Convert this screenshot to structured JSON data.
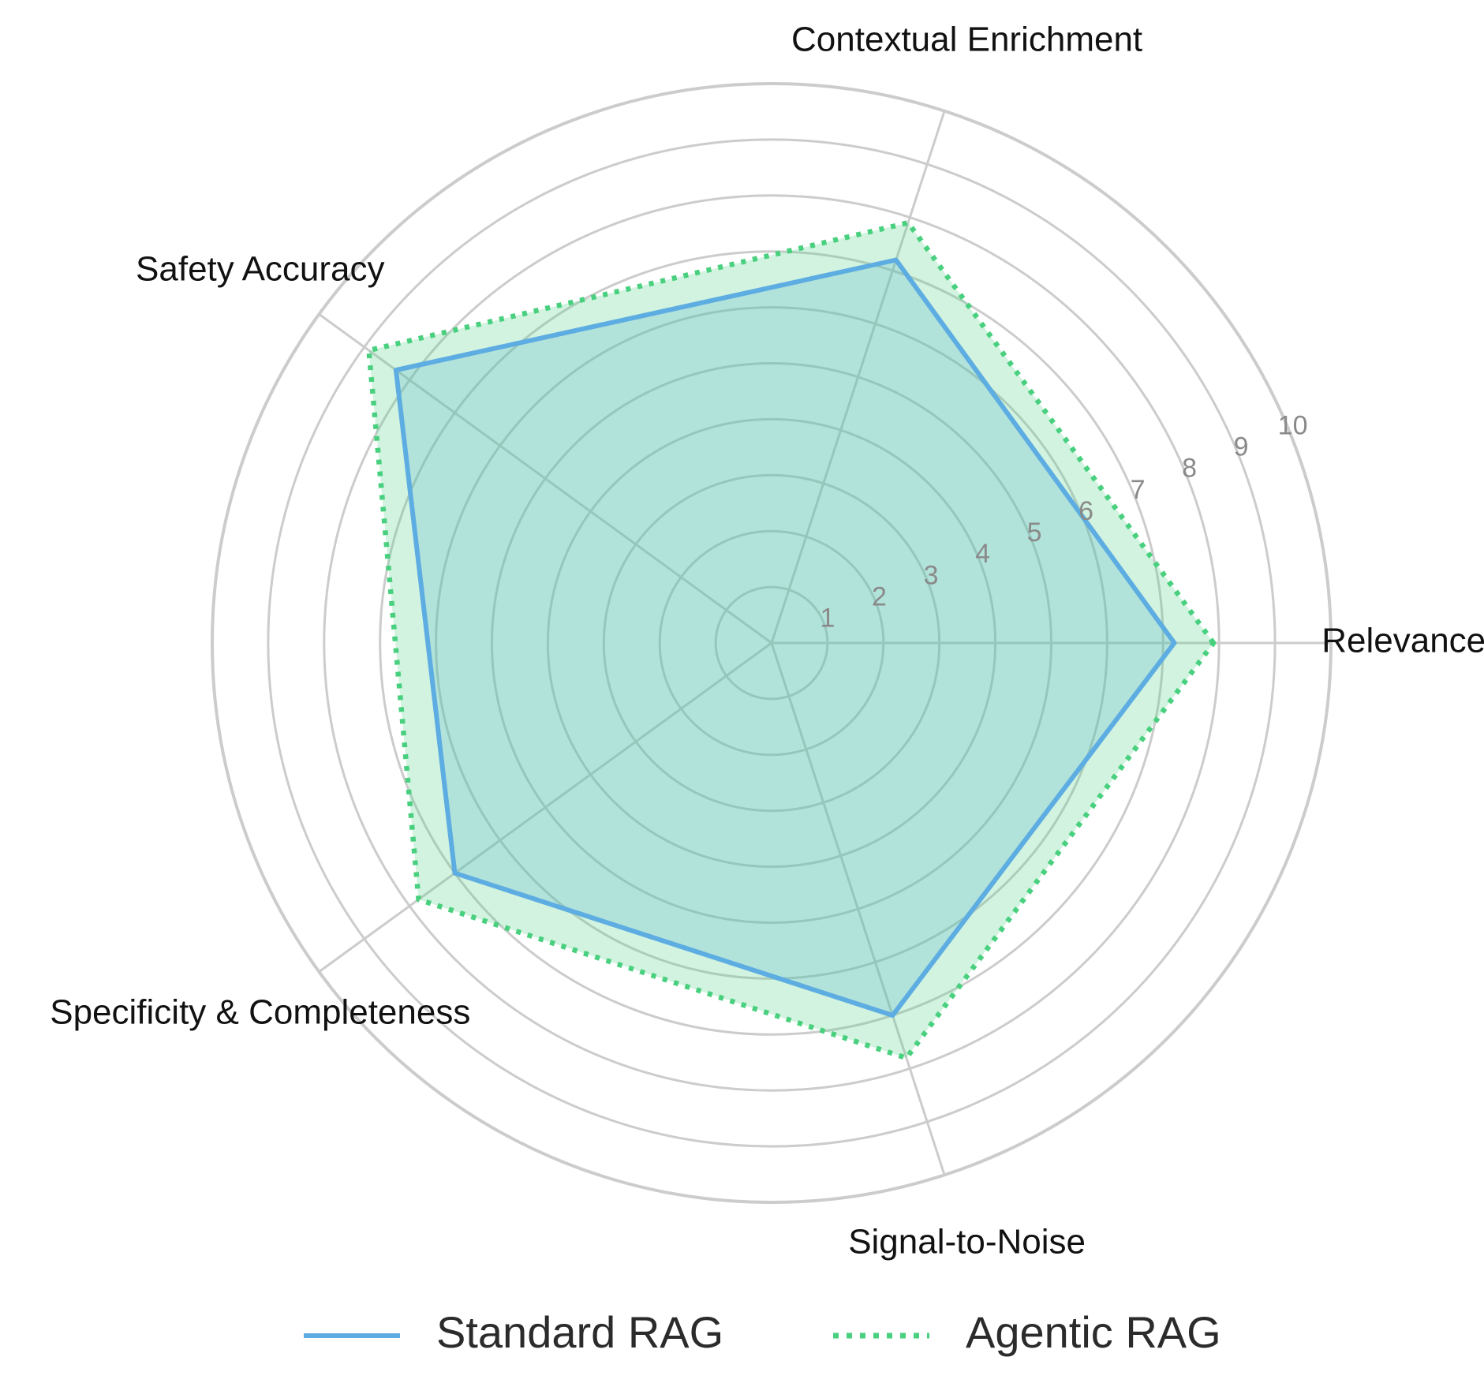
{
  "chart_data": {
    "type": "radar",
    "categories": [
      "Relevance",
      "Contextual Enrichment",
      "Safety Accuracy",
      "Specificity & Completeness",
      "Signal-to-Noise"
    ],
    "series": [
      {
        "name": "Standard RAG",
        "values": [
          7.2,
          7.2,
          8.3,
          7.0,
          7.0
        ],
        "color": "#5dade2",
        "line_style": "solid",
        "fill": "#5dade2"
      },
      {
        "name": "Agentic RAG",
        "values": [
          7.9,
          7.9,
          8.9,
          7.8,
          7.8
        ],
        "color": "#48d07e",
        "line_style": "dotted",
        "fill": "#48d07e"
      }
    ],
    "radial_ticks": [
      1,
      2,
      3,
      4,
      5,
      6,
      7,
      8,
      9,
      10
    ],
    "rlim": [
      0,
      10
    ],
    "grid": true,
    "legend_position": "bottom"
  }
}
